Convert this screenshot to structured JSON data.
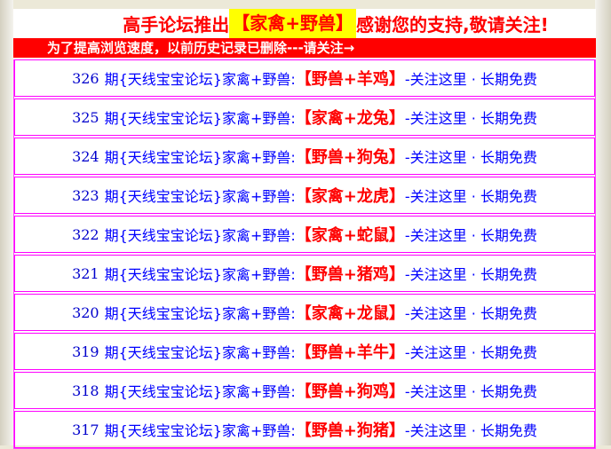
{
  "header": {
    "prefix": "高手论坛推出",
    "highlight": "【家禽+野兽】",
    "suffix": "感谢您的支持,敬请关注!"
  },
  "notice": "为了提高浏览速度，以前历史记录已删除---请关注→",
  "row_label": "期{天线宝宝论坛}家禽+野兽:",
  "row_tail": "-关注这里 · 长期免费",
  "rows": [
    {
      "num": "326",
      "pick": "【野兽+羊鸡】"
    },
    {
      "num": "325",
      "pick": "【家禽+龙兔】"
    },
    {
      "num": "324",
      "pick": "【野兽+狗兔】"
    },
    {
      "num": "323",
      "pick": "【家禽+龙虎】"
    },
    {
      "num": "322",
      "pick": "【家禽+蛇鼠】"
    },
    {
      "num": "321",
      "pick": "【野兽+猪鸡】"
    },
    {
      "num": "320",
      "pick": "【家禽+龙鼠】"
    },
    {
      "num": "319",
      "pick": "【野兽+羊牛】"
    },
    {
      "num": "318",
      "pick": "【野兽+狗鸡】"
    },
    {
      "num": "317",
      "pick": "【野兽+狗猪】"
    }
  ],
  "colors": {
    "accent": "#ff0000",
    "link": "#0000ff",
    "border": "#ff00ff",
    "highlight": "#ffff00"
  }
}
